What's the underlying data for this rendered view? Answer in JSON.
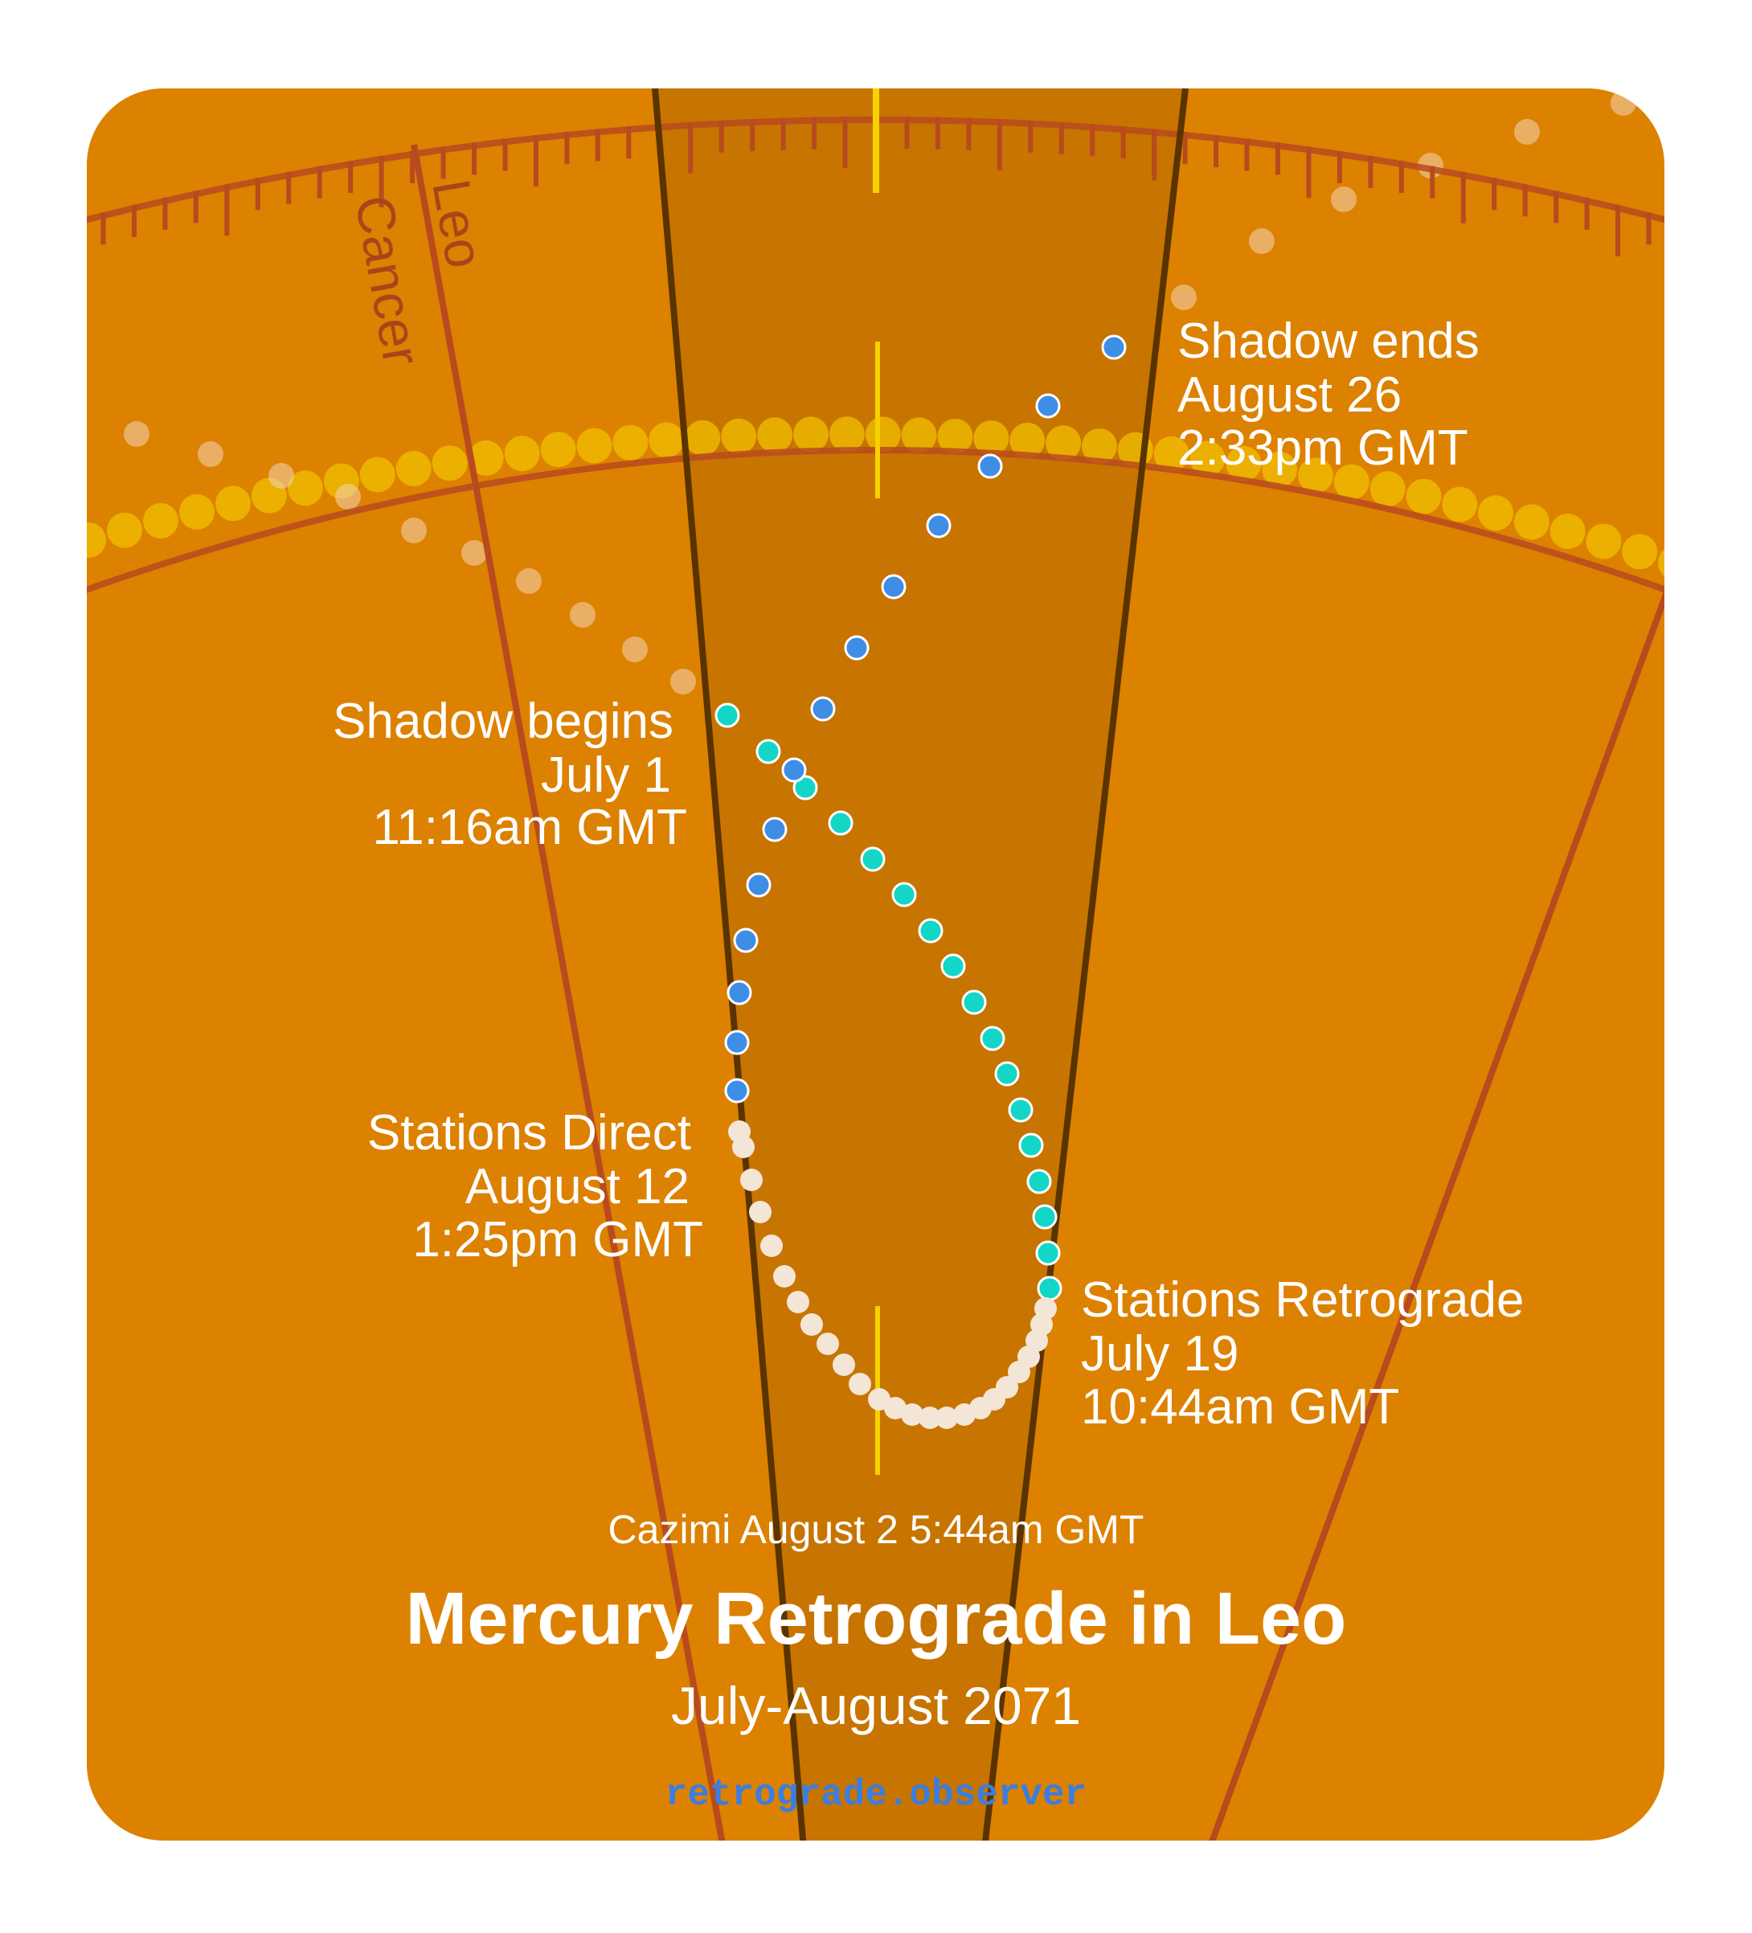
{
  "title": "Mercury Retrograde in Leo",
  "subtitle": "July-August 2071",
  "site": "retrograde.observer",
  "cazimi": "Cazimi August 2 5:44am GMT",
  "signs": {
    "left": "Cancer",
    "right": "Leo"
  },
  "events": {
    "shadow_begins": {
      "title": "Shadow begins",
      "date": "July 1",
      "time": "11:16am GMT"
    },
    "stations_retrograde": {
      "title": "Stations Retrograde",
      "date": "July 19",
      "time": "10:44am GMT"
    },
    "stations_direct": {
      "title": "Stations Direct",
      "date": "August 12",
      "time": "1:25pm GMT"
    },
    "shadow_ends": {
      "title": "Shadow ends",
      "date": "August 26",
      "time": "2:33pm GMT"
    }
  },
  "colors": {
    "background": "#dd8100",
    "shadow_band": "#c87400",
    "zodiac_line": "#b84a1e",
    "sun_path": "#f0c000",
    "pre_shadow_dot": "#14d6c6",
    "retrograde_dot": "#f3e6d6",
    "post_shadow_dot": "#3f8ee6",
    "site_text": "#3a7ee0"
  }
}
